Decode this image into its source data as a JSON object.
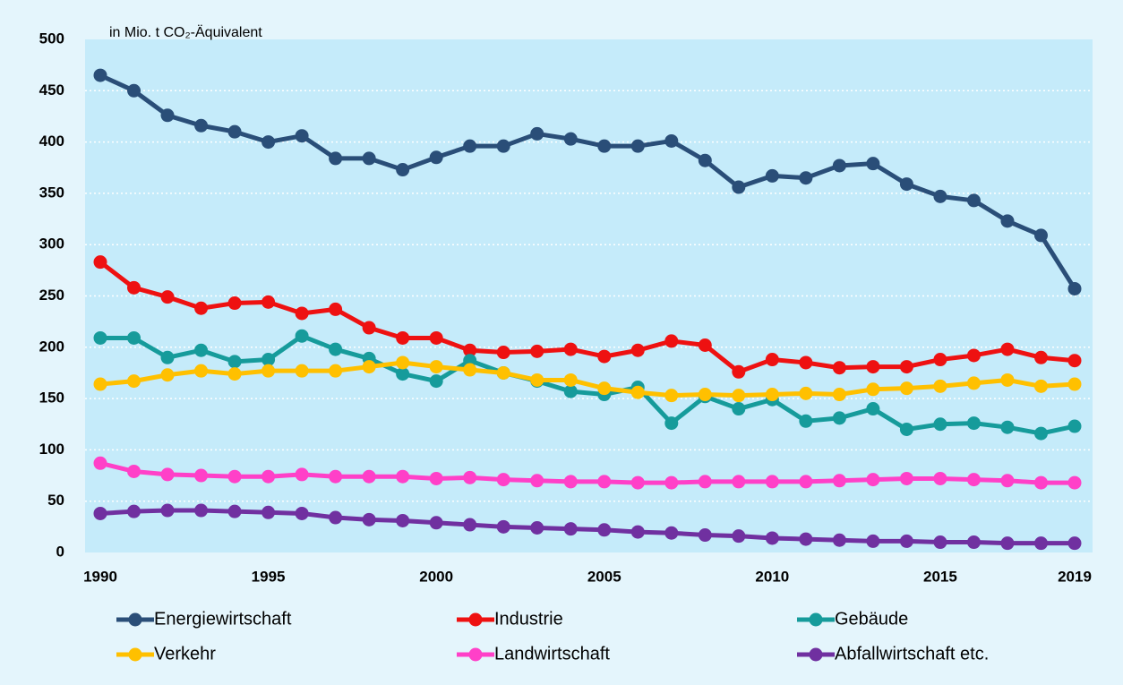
{
  "chart_data": {
    "type": "line",
    "y_label": "in Mio. t CO₂-Äquivalent",
    "x": [
      1990,
      1991,
      1992,
      1993,
      1994,
      1995,
      1996,
      1997,
      1998,
      1999,
      2000,
      2001,
      2002,
      2003,
      2004,
      2005,
      2006,
      2007,
      2008,
      2009,
      2010,
      2011,
      2012,
      2013,
      2014,
      2015,
      2016,
      2017,
      2018,
      2019
    ],
    "xlim": [
      1990,
      2019
    ],
    "xticks": [
      1990,
      1995,
      2000,
      2005,
      2010,
      2015,
      2019
    ],
    "ylim": [
      0,
      500
    ],
    "yticks": [
      0,
      50,
      100,
      150,
      200,
      250,
      300,
      350,
      400,
      450,
      500
    ],
    "grid": true,
    "series": [
      {
        "name": "Energiewirtschaft",
        "color": "#2a4e78",
        "values": [
          465,
          450,
          426,
          416,
          410,
          400,
          406,
          384,
          384,
          373,
          385,
          396,
          396,
          408,
          403,
          396,
          396,
          401,
          382,
          356,
          367,
          365,
          377,
          379,
          359,
          347,
          343,
          323,
          309,
          257
        ]
      },
      {
        "name": "Industrie",
        "color": "#ee1111",
        "values": [
          283,
          258,
          249,
          238,
          243,
          244,
          233,
          237,
          219,
          209,
          209,
          197,
          195,
          196,
          198,
          191,
          197,
          206,
          202,
          176,
          188,
          185,
          180,
          181,
          181,
          188,
          192,
          198,
          190,
          187
        ]
      },
      {
        "name": "Gebäude",
        "color": "#169b9b",
        "values": [
          209,
          209,
          190,
          197,
          186,
          188,
          211,
          198,
          189,
          174,
          167,
          187,
          175,
          167,
          157,
          154,
          161,
          126,
          152,
          140,
          149,
          128,
          131,
          140,
          120,
          125,
          126,
          122,
          116,
          123
        ]
      },
      {
        "name": "Verkehr",
        "color": "#ffc000",
        "values": [
          164,
          167,
          173,
          177,
          174,
          177,
          177,
          177,
          181,
          185,
          181,
          178,
          175,
          168,
          168,
          160,
          156,
          153,
          154,
          153,
          154,
          155,
          154,
          159,
          160,
          162,
          165,
          168,
          162,
          164
        ]
      },
      {
        "name": "Landwirtschaft",
        "color": "#ff40c8",
        "values": [
          87,
          79,
          76,
          75,
          74,
          74,
          76,
          74,
          74,
          74,
          72,
          73,
          71,
          70,
          69,
          69,
          68,
          68,
          69,
          69,
          69,
          69,
          70,
          71,
          72,
          72,
          71,
          70,
          68,
          68
        ]
      },
      {
        "name": "Abfallwirtschaft etc.",
        "color": "#7030a0",
        "values": [
          38,
          40,
          41,
          41,
          40,
          39,
          38,
          34,
          32,
          31,
          29,
          27,
          25,
          24,
          23,
          22,
          20,
          19,
          17,
          16,
          14,
          13,
          12,
          11,
          11,
          10,
          10,
          9,
          9,
          9
        ]
      }
    ]
  }
}
